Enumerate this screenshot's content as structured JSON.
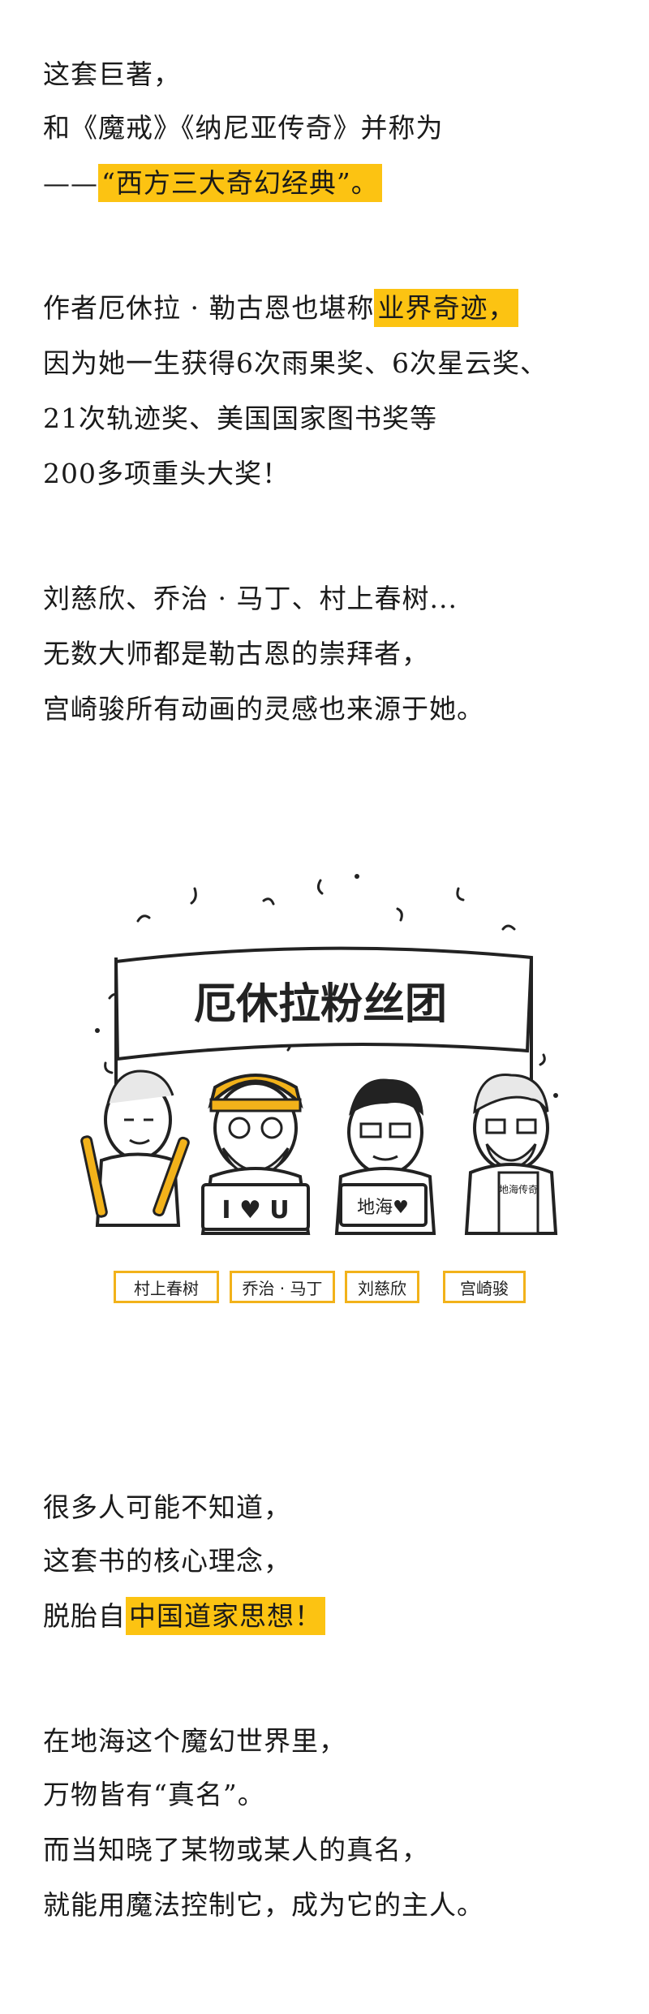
{
  "block1": {
    "line1": "这套巨著，",
    "line2": "和《魔戒》《纳尼亚传奇》并称为",
    "line3_dash": "——",
    "line3_highlight": "“西方三大奇幻经典”。"
  },
  "block2": {
    "line1_prefix": "作者厄休拉 · 勒古恩也堪称",
    "line1_highlight": "业界奇迹，",
    "line2": "因为她一生获得6次雨果奖、6次星云奖、",
    "line3": "21次轨迹奖、美国国家图书奖等",
    "line4": "200多项重头大奖！"
  },
  "block3": {
    "line1": "刘慈欣、乔治 · 马丁、村上春树...",
    "line2": "无数大师都是勒古恩的崇拜者，",
    "line3": "宫崎骏所有动画的灵感也来源于她。"
  },
  "illustration": {
    "banner_text": "厄休拉粉丝团",
    "sign_iloveu": "I ♥ U",
    "sign_dihai": "地海♥",
    "sign_book": "地海传奇",
    "labels": [
      "村上春树",
      "乔治 · 马丁",
      "刘慈欣",
      "宫崎骏"
    ],
    "accent_color": "#f2b21a"
  },
  "block4": {
    "line1": "很多人可能不知道，",
    "line2": "这套书的核心理念，",
    "line3_prefix": "脱胎自",
    "line3_highlight": "中国道家思想！"
  },
  "block5": {
    "line1": "在地海这个魔幻世界里，",
    "line2": "万物皆有“真名”。",
    "line3": "而当知晓了某物或某人的真名，",
    "line4": "就能用魔法控制它，成为它的主人。"
  }
}
